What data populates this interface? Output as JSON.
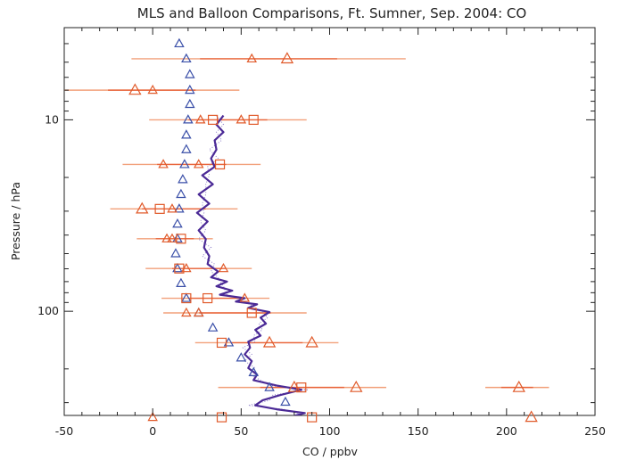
{
  "chart_data": {
    "type": "scatter",
    "title": "MLS and Balloon Comparisons, Ft. Sumner, Sep. 2004: CO",
    "xlabel": "CO / ppbv",
    "ylabel": "Pressure / hPa",
    "xlim": [
      -50,
      250
    ],
    "ylim": [
      350,
      3.3
    ],
    "yscale": "log",
    "grid": false,
    "x_ticks": [
      -50,
      0,
      50,
      100,
      150,
      200,
      250
    ],
    "y_tick_labels": [
      {
        "value": 10,
        "label": "10"
      },
      {
        "value": 100,
        "label": "100"
      }
    ],
    "colors": {
      "mls_triangles": "#3a4fa8",
      "balloon_profile": "#4b2a96",
      "comparison": "#e05a2a",
      "error_bars": "#f2a07a"
    },
    "series": [
      {
        "marker": "triangle",
        "color": "#3a4fa8",
        "points": [
          {
            "x": 15,
            "p": 4.0
          },
          {
            "x": 19,
            "p": 4.8
          },
          {
            "x": 21,
            "p": 5.8
          },
          {
            "x": 21,
            "p": 7.0
          },
          {
            "x": 21,
            "p": 8.3
          },
          {
            "x": 20,
            "p": 10.0
          },
          {
            "x": 19,
            "p": 12.0
          },
          {
            "x": 19,
            "p": 14.3
          },
          {
            "x": 18,
            "p": 17.1
          },
          {
            "x": 17,
            "p": 20.5
          },
          {
            "x": 16,
            "p": 24.5
          },
          {
            "x": 15,
            "p": 29.2
          },
          {
            "x": 14,
            "p": 35.0
          },
          {
            "x": 14,
            "p": 41.8
          },
          {
            "x": 13,
            "p": 50.0
          },
          {
            "x": 14,
            "p": 59.8
          },
          {
            "x": 16,
            "p": 71.5
          },
          {
            "x": 19,
            "p": 85.5
          },
          {
            "x": 26,
            "p": 102.0
          },
          {
            "x": 34,
            "p": 122.0
          },
          {
            "x": 43,
            "p": 146.0
          },
          {
            "x": 50,
            "p": 175.0
          },
          {
            "x": 57,
            "p": 209.0
          },
          {
            "x": 66,
            "p": 250.0
          },
          {
            "x": 75,
            "p": 298.0
          }
        ]
      },
      {
        "marker": "square",
        "color": "#e05a2a",
        "points": [
          {
            "x": 34,
            "p": 10.0
          },
          {
            "x": 57,
            "p": 10.0
          },
          {
            "x": 38,
            "p": 17.1
          },
          {
            "x": 4,
            "p": 29.2
          },
          {
            "x": 16,
            "p": 41.8
          },
          {
            "x": 15,
            "p": 59.8
          },
          {
            "x": 31,
            "p": 85.5
          },
          {
            "x": 19,
            "p": 85.5
          },
          {
            "x": 56,
            "p": 102.0
          },
          {
            "x": 39,
            "p": 146.0
          },
          {
            "x": 84,
            "p": 250.0
          },
          {
            "x": 39,
            "p": 358.0
          },
          {
            "x": 90,
            "p": 358.0
          }
        ]
      },
      {
        "marker": "triangle",
        "color": "#e05a2a",
        "points": [
          {
            "x": 56,
            "p": 4.8
          },
          {
            "x": 76,
            "p": 4.8
          },
          {
            "x": 0,
            "p": 7.0
          },
          {
            "x": -10,
            "p": 7.0
          },
          {
            "x": 27,
            "p": 10.0
          },
          {
            "x": 50,
            "p": 10.0
          },
          {
            "x": 6,
            "p": 17.1
          },
          {
            "x": 26,
            "p": 17.1
          },
          {
            "x": -6,
            "p": 29.2
          },
          {
            "x": 11,
            "p": 29.2
          },
          {
            "x": 8,
            "p": 41.8
          },
          {
            "x": 11,
            "p": 41.8
          },
          {
            "x": 19,
            "p": 59.8
          },
          {
            "x": 40,
            "p": 59.8
          },
          {
            "x": 52,
            "p": 85.5
          },
          {
            "x": 19,
            "p": 102.0
          },
          {
            "x": 26,
            "p": 102.0
          },
          {
            "x": 66,
            "p": 146.0
          },
          {
            "x": 90,
            "p": 146.0
          },
          {
            "x": 80,
            "p": 250.0
          },
          {
            "x": 115,
            "p": 250.0
          },
          {
            "x": 207,
            "p": 250.0
          },
          {
            "x": 0,
            "p": 358.0
          },
          {
            "x": 214,
            "p": 358.0
          }
        ]
      },
      {
        "marker": "line",
        "color": "#4b2a96",
        "points": [
          {
            "x": 40,
            "p": 9.5
          },
          {
            "x": 36,
            "p": 10.6
          },
          {
            "x": 40,
            "p": 11.6
          },
          {
            "x": 35,
            "p": 12.8
          },
          {
            "x": 36,
            "p": 14.3
          },
          {
            "x": 33,
            "p": 15.9
          },
          {
            "x": 35,
            "p": 17.6
          },
          {
            "x": 28,
            "p": 19.5
          },
          {
            "x": 34,
            "p": 21.7
          },
          {
            "x": 26,
            "p": 24.5
          },
          {
            "x": 32,
            "p": 27.4
          },
          {
            "x": 25,
            "p": 30.6
          },
          {
            "x": 31,
            "p": 34.0
          },
          {
            "x": 26,
            "p": 37.8
          },
          {
            "x": 30,
            "p": 42.0
          },
          {
            "x": 29,
            "p": 46.5
          },
          {
            "x": 32,
            "p": 51.5
          },
          {
            "x": 31,
            "p": 56.7
          },
          {
            "x": 37,
            "p": 62.0
          },
          {
            "x": 33,
            "p": 66.5
          },
          {
            "x": 42,
            "p": 70.0
          },
          {
            "x": 36,
            "p": 74.0
          },
          {
            "x": 45,
            "p": 78.0
          },
          {
            "x": 38,
            "p": 82.0
          },
          {
            "x": 52,
            "p": 85.5
          },
          {
            "x": 47,
            "p": 89.0
          },
          {
            "x": 59,
            "p": 92.0
          },
          {
            "x": 54,
            "p": 96.0
          },
          {
            "x": 66,
            "p": 101.0
          },
          {
            "x": 61,
            "p": 108.0
          },
          {
            "x": 64,
            "p": 116.0
          },
          {
            "x": 58,
            "p": 125.0
          },
          {
            "x": 61,
            "p": 134.0
          },
          {
            "x": 54,
            "p": 144.0
          },
          {
            "x": 55,
            "p": 155.0
          },
          {
            "x": 52,
            "p": 168.0
          },
          {
            "x": 56,
            "p": 182.0
          },
          {
            "x": 54,
            "p": 198.0
          },
          {
            "x": 59,
            "p": 214.0
          },
          {
            "x": 57,
            "p": 229.0
          },
          {
            "x": 70,
            "p": 244.0
          },
          {
            "x": 84,
            "p": 257.0
          },
          {
            "x": 72,
            "p": 274.0
          },
          {
            "x": 62,
            "p": 292.0
          },
          {
            "x": 58,
            "p": 310.0
          },
          {
            "x": 70,
            "p": 325.0
          },
          {
            "x": 86,
            "p": 340.0
          },
          {
            "x": 76,
            "p": 360.0
          },
          {
            "x": 82,
            "p": 382.0
          },
          {
            "x": 76,
            "p": 405.0
          }
        ]
      },
      {
        "marker": "error-bar",
        "color": "#f2a07a",
        "points": [
          {
            "x_min": -12,
            "x_max": 143,
            "p": 4.8
          },
          {
            "x_min": -50,
            "x_max": 49,
            "p": 7.0
          },
          {
            "x_min": -2,
            "x_max": 87,
            "p": 10.0
          },
          {
            "x_min": -17,
            "x_max": 61,
            "p": 17.1
          },
          {
            "x_min": -24,
            "x_max": 48,
            "p": 29.2
          },
          {
            "x_min": -9,
            "x_max": 34,
            "p": 41.8
          },
          {
            "x_min": -4,
            "x_max": 56,
            "p": 59.8
          },
          {
            "x_min": 5,
            "x_max": 66,
            "p": 85.5
          },
          {
            "x_min": 6,
            "x_max": 87,
            "p": 102.0
          },
          {
            "x_min": 24,
            "x_max": 105,
            "p": 146.0
          },
          {
            "x_min": 37,
            "x_max": 132,
            "p": 250.0
          },
          {
            "x_min": 188,
            "x_max": 224,
            "p": 250.0
          },
          {
            "x_min": -33,
            "x_max": 122,
            "p": 358.0
          },
          {
            "x_min": 172,
            "x_max": 250,
            "p": 358.0
          }
        ]
      }
    ]
  }
}
